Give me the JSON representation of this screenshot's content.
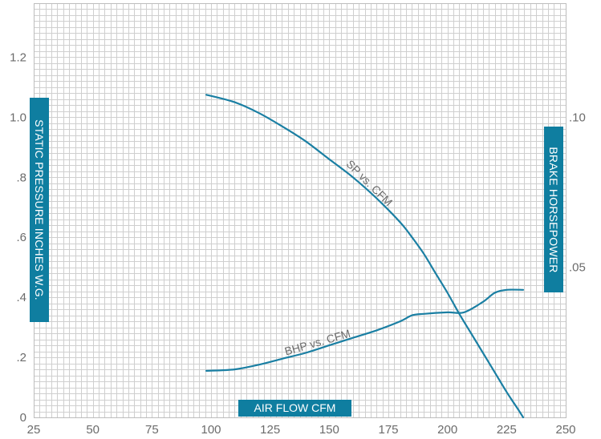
{
  "chart_data": {
    "type": "line",
    "xlabel": "AIR FLOW CFM",
    "ylabel": "STATIC PRESSURE INCHES W.G.",
    "y2label": "BRAKE HORSEPOWER",
    "xlim": [
      25,
      250
    ],
    "ylim": [
      0,
      1.38
    ],
    "y2lim": [
      0,
      0.138
    ],
    "x_ticks": [
      25,
      50,
      75,
      100,
      125,
      150,
      175,
      200,
      225,
      250
    ],
    "x_tick_labels": [
      "25",
      "50",
      "75",
      "100",
      "125",
      "150",
      "175",
      "200",
      "225",
      "250"
    ],
    "y_ticks": [
      0,
      0.2,
      0.4,
      0.6,
      0.8,
      1.0,
      1.2
    ],
    "y_tick_labels": [
      "0",
      ".2",
      ".4",
      ".6",
      ".8",
      "1.0",
      "1.2"
    ],
    "y2_ticks": [
      0.05,
      0.1
    ],
    "y2_tick_labels": [
      ".05",
      ".10"
    ],
    "grid": true,
    "series": [
      {
        "name": "SP vs. CFM",
        "axis": "left",
        "color": "#1a7fa3",
        "x": [
          98,
          110,
          120,
          130,
          140,
          150,
          160,
          170,
          180,
          185,
          190,
          195,
          200,
          205,
          210,
          215,
          220,
          225,
          230,
          232
        ],
        "y": [
          1.075,
          1.05,
          1.015,
          0.97,
          0.92,
          0.86,
          0.8,
          0.73,
          0.65,
          0.6,
          0.545,
          0.48,
          0.415,
          0.345,
          0.28,
          0.215,
          0.15,
          0.085,
          0.025,
          0.0
        ]
      },
      {
        "name": "BHP vs. CFM",
        "axis": "right",
        "color": "#1a7fa3",
        "x": [
          98,
          110,
          120,
          130,
          140,
          150,
          160,
          170,
          180,
          185,
          190,
          200,
          207,
          215,
          220,
          225,
          232
        ],
        "y": [
          0.0155,
          0.016,
          0.0175,
          0.0195,
          0.0215,
          0.024,
          0.0265,
          0.029,
          0.032,
          0.034,
          0.0345,
          0.035,
          0.035,
          0.0385,
          0.0415,
          0.0425,
          0.0425
        ]
      }
    ]
  }
}
